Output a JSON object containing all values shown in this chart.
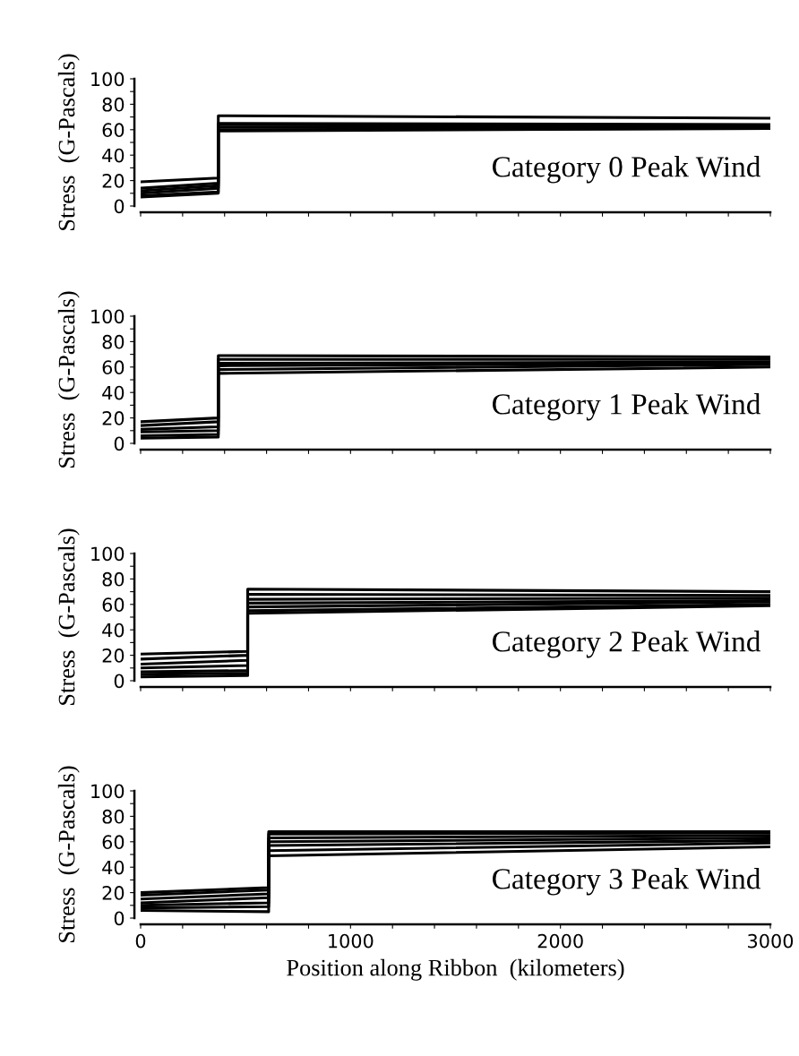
{
  "chart_data": [
    {
      "type": "line",
      "annotations": [
        "Category 0 Peak Wind"
      ],
      "ylabel": "Stress  (G-Pascals)",
      "xlim": [
        0,
        3000
      ],
      "xticks": [
        0,
        {
          "value": 200,
          "label": null
        },
        {
          "value": 400,
          "label": null
        },
        {
          "value": 600,
          "label": null
        },
        {
          "value": 800,
          "label": null
        },
        1000,
        {
          "value": 1200,
          "label": null
        },
        {
          "value": 1400,
          "label": null
        },
        {
          "value": 1600,
          "label": null
        },
        {
          "value": 1800,
          "label": null
        },
        2000,
        {
          "value": 2200,
          "label": null
        },
        {
          "value": 2400,
          "label": null
        },
        {
          "value": 2600,
          "label": null
        },
        {
          "value": 2800,
          "label": null
        },
        3000
      ],
      "ylim": [
        0,
        100
      ],
      "yticks": [
        0,
        {
          "value": 10,
          "label": null
        },
        20,
        {
          "value": 30,
          "label": null
        },
        40,
        {
          "value": 50,
          "label": null
        },
        60,
        {
          "value": 70,
          "label": null
        },
        80,
        {
          "value": 90,
          "label": null
        },
        100
      ],
      "tick_labels": "y",
      "grid": false,
      "legend": false,
      "x": [
        0,
        370,
        370,
        3000
      ],
      "series": [
        {
          "color": "#000000",
          "values": [
            19,
            22,
            71,
            69
          ]
        },
        {
          "color": "#000000",
          "values": [
            14,
            18,
            65,
            64
          ]
        },
        {
          "color": "#000000",
          "values": [
            12,
            16,
            64,
            63
          ]
        },
        {
          "color": "#000000",
          "values": [
            10,
            14,
            62,
            62
          ]
        },
        {
          "color": "#000000",
          "values": [
            8,
            11,
            60,
            61
          ]
        },
        {
          "color": "#000000",
          "values": [
            7,
            10,
            59,
            61
          ]
        }
      ]
    },
    {
      "type": "line",
      "annotations": [
        "Category 1 Peak Wind"
      ],
      "ylabel": "Stress  (G-Pascals)",
      "xlim": [
        0,
        3000
      ],
      "xticks": [
        0,
        {
          "value": 200,
          "label": null
        },
        {
          "value": 400,
          "label": null
        },
        {
          "value": 600,
          "label": null
        },
        {
          "value": 800,
          "label": null
        },
        1000,
        {
          "value": 1200,
          "label": null
        },
        {
          "value": 1400,
          "label": null
        },
        {
          "value": 1600,
          "label": null
        },
        {
          "value": 1800,
          "label": null
        },
        2000,
        {
          "value": 2200,
          "label": null
        },
        {
          "value": 2400,
          "label": null
        },
        {
          "value": 2600,
          "label": null
        },
        {
          "value": 2800,
          "label": null
        },
        3000
      ],
      "ylim": [
        0,
        100
      ],
      "yticks": [
        0,
        {
          "value": 10,
          "label": null
        },
        20,
        {
          "value": 30,
          "label": null
        },
        40,
        {
          "value": 50,
          "label": null
        },
        60,
        {
          "value": 70,
          "label": null
        },
        80,
        {
          "value": 90,
          "label": null
        },
        100
      ],
      "tick_labels": "y",
      "grid": false,
      "legend": false,
      "x": [
        0,
        370,
        370,
        3000
      ],
      "series": [
        {
          "color": "#000000",
          "values": [
            17,
            20,
            69,
            68
          ]
        },
        {
          "color": "#000000",
          "values": [
            14,
            17,
            66,
            66
          ]
        },
        {
          "color": "#000000",
          "values": [
            11,
            13,
            63,
            64
          ]
        },
        {
          "color": "#000000",
          "values": [
            9,
            10,
            61,
            63
          ]
        },
        {
          "color": "#000000",
          "values": [
            6,
            7,
            58,
            62
          ]
        },
        {
          "color": "#000000",
          "values": [
            4,
            5,
            55,
            60
          ]
        }
      ]
    },
    {
      "type": "line",
      "annotations": [
        "Category 2 Peak Wind"
      ],
      "ylabel": "Stress  (G-Pascals)",
      "xlim": [
        0,
        3000
      ],
      "xticks": [
        0,
        {
          "value": 200,
          "label": null
        },
        {
          "value": 400,
          "label": null
        },
        {
          "value": 600,
          "label": null
        },
        {
          "value": 800,
          "label": null
        },
        1000,
        {
          "value": 1200,
          "label": null
        },
        {
          "value": 1400,
          "label": null
        },
        {
          "value": 1600,
          "label": null
        },
        {
          "value": 1800,
          "label": null
        },
        2000,
        {
          "value": 2200,
          "label": null
        },
        {
          "value": 2400,
          "label": null
        },
        {
          "value": 2600,
          "label": null
        },
        {
          "value": 2800,
          "label": null
        },
        3000
      ],
      "ylim": [
        0,
        100
      ],
      "yticks": [
        0,
        {
          "value": 10,
          "label": null
        },
        20,
        {
          "value": 30,
          "label": null
        },
        40,
        {
          "value": 50,
          "label": null
        },
        60,
        {
          "value": 70,
          "label": null
        },
        80,
        {
          "value": 90,
          "label": null
        },
        100
      ],
      "tick_labels": "y",
      "grid": false,
      "legend": false,
      "x": [
        0,
        510,
        510,
        3000
      ],
      "series": [
        {
          "color": "#000000",
          "values": [
            21,
            23,
            72,
            70
          ]
        },
        {
          "color": "#000000",
          "values": [
            17,
            20,
            68,
            67
          ]
        },
        {
          "color": "#000000",
          "values": [
            13,
            16,
            64,
            65
          ]
        },
        {
          "color": "#000000",
          "values": [
            10,
            12,
            61,
            63
          ]
        },
        {
          "color": "#000000",
          "values": [
            7,
            8,
            58,
            62
          ]
        },
        {
          "color": "#000000",
          "values": [
            5,
            6,
            55,
            60
          ]
        },
        {
          "color": "#000000",
          "values": [
            3,
            4,
            53,
            59
          ]
        }
      ]
    },
    {
      "type": "line",
      "annotations": [
        "Category 3 Peak Wind"
      ],
      "ylabel": "Stress  (G-Pascals)",
      "xlabel": "Position along Ribbon  (kilometers)",
      "xlim": [
        0,
        3000
      ],
      "xticks": [
        0,
        {
          "value": 200,
          "label": null
        },
        {
          "value": 400,
          "label": null
        },
        {
          "value": 600,
          "label": null
        },
        {
          "value": 800,
          "label": null
        },
        1000,
        {
          "value": 1200,
          "label": null
        },
        {
          "value": 1400,
          "label": null
        },
        {
          "value": 1600,
          "label": null
        },
        {
          "value": 1800,
          "label": null
        },
        2000,
        {
          "value": 2200,
          "label": null
        },
        {
          "value": 2400,
          "label": null
        },
        {
          "value": 2600,
          "label": null
        },
        {
          "value": 2800,
          "label": null
        },
        3000
      ],
      "ylim": [
        0,
        100
      ],
      "yticks": [
        0,
        {
          "value": 10,
          "label": null
        },
        20,
        {
          "value": 30,
          "label": null
        },
        40,
        {
          "value": 50,
          "label": null
        },
        60,
        {
          "value": 70,
          "label": null
        },
        80,
        {
          "value": 90,
          "label": null
        },
        100
      ],
      "grid": false,
      "legend": false,
      "x": [
        0,
        610,
        610,
        3000
      ],
      "series": [
        {
          "color": "#000000",
          "values": [
            20,
            24,
            68,
            68
          ]
        },
        {
          "color": "#000000",
          "values": [
            18,
            22,
            66,
            67
          ]
        },
        {
          "color": "#000000",
          "values": [
            15,
            19,
            63,
            65
          ]
        },
        {
          "color": "#000000",
          "values": [
            12,
            16,
            60,
            63
          ]
        },
        {
          "color": "#000000",
          "values": [
            10,
            12,
            57,
            61
          ]
        },
        {
          "color": "#000000",
          "values": [
            8,
            9,
            53,
            59
          ]
        },
        {
          "color": "#000000",
          "values": [
            6,
            5,
            49,
            56
          ]
        }
      ]
    }
  ]
}
